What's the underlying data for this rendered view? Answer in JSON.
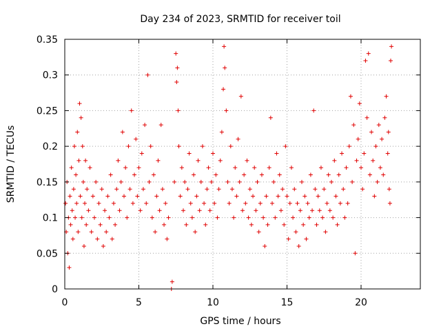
{
  "chart_data": {
    "type": "scatter",
    "title": "Day 234 of 2023, SRMTID for receiver toil",
    "xlabel": "GPS time / hours",
    "ylabel": "SRMTID / TECUs",
    "xlim": [
      0,
      24
    ],
    "ylim": [
      0,
      0.35
    ],
    "x_ticks": [
      0,
      5,
      10,
      15,
      20
    ],
    "x_tick_labels": [
      "0",
      "5",
      "10",
      "15",
      "20"
    ],
    "y_ticks": [
      0,
      0.05,
      0.1,
      0.15,
      0.2,
      0.25,
      0.3,
      0.35
    ],
    "y_tick_labels": [
      "0",
      "0.05",
      "0.1",
      "0.15",
      "0.2",
      "0.25",
      "0.3",
      "0.35"
    ],
    "grid": true,
    "marker": "+",
    "color": "#e00000",
    "series": [
      {
        "points": [
          [
            0.05,
            0.12
          ],
          [
            0.1,
            0.08
          ],
          [
            0.15,
            0.15
          ],
          [
            0.2,
            0.05
          ],
          [
            0.25,
            0.1
          ],
          [
            0.3,
            0.03
          ],
          [
            0.35,
            0.13
          ],
          [
            0.4,
            0.09
          ],
          [
            0.45,
            0.17
          ],
          [
            0.5,
            0.11
          ],
          [
            0.55,
            0.07
          ],
          [
            0.6,
            0.14
          ],
          [
            0.65,
            0.2
          ],
          [
            0.7,
            0.1
          ],
          [
            0.75,
            0.16
          ],
          [
            0.8,
            0.12
          ],
          [
            0.85,
            0.22
          ],
          [
            0.9,
            0.08
          ],
          [
            0.95,
            0.18
          ],
          [
            1.0,
            0.26
          ],
          [
            1.05,
            0.13
          ],
          [
            1.1,
            0.24
          ],
          [
            1.15,
            0.1
          ],
          [
            1.2,
            0.2
          ],
          [
            1.25,
            0.15
          ],
          [
            1.3,
            0.06
          ],
          [
            1.35,
            0.12
          ],
          [
            1.4,
            0.18
          ],
          [
            1.45,
            0.09
          ],
          [
            1.5,
            0.14
          ],
          [
            1.6,
            0.11
          ],
          [
            1.7,
            0.17
          ],
          [
            1.8,
            0.08
          ],
          [
            1.9,
            0.13
          ],
          [
            2.0,
            0.1
          ],
          [
            2.1,
            0.15
          ],
          [
            2.2,
            0.07
          ],
          [
            2.3,
            0.12
          ],
          [
            2.4,
            0.09
          ],
          [
            2.5,
            0.14
          ],
          [
            2.6,
            0.06
          ],
          [
            2.7,
            0.11
          ],
          [
            2.8,
            0.08
          ],
          [
            2.9,
            0.13
          ],
          [
            3.0,
            0.1
          ],
          [
            3.1,
            0.16
          ],
          [
            3.2,
            0.07
          ],
          [
            3.3,
            0.12
          ],
          [
            3.4,
            0.09
          ],
          [
            3.5,
            0.14
          ],
          [
            3.6,
            0.18
          ],
          [
            3.7,
            0.11
          ],
          [
            3.8,
            0.15
          ],
          [
            3.9,
            0.22
          ],
          [
            4.0,
            0.13
          ],
          [
            4.1,
            0.17
          ],
          [
            4.2,
            0.1
          ],
          [
            4.3,
            0.2
          ],
          [
            4.4,
            0.14
          ],
          [
            4.5,
            0.25
          ],
          [
            4.6,
            0.12
          ],
          [
            4.7,
            0.16
          ],
          [
            4.8,
            0.21
          ],
          [
            4.9,
            0.13
          ],
          [
            5.0,
            0.17
          ],
          [
            5.1,
            0.11
          ],
          [
            5.2,
            0.19
          ],
          [
            5.3,
            0.14
          ],
          [
            5.4,
            0.23
          ],
          [
            5.5,
            0.12
          ],
          [
            5.6,
            0.3
          ],
          [
            5.7,
            0.15
          ],
          [
            5.8,
            0.2
          ],
          [
            5.9,
            0.1
          ],
          [
            6.0,
            0.16
          ],
          [
            6.1,
            0.08
          ],
          [
            6.2,
            0.13
          ],
          [
            6.3,
            0.18
          ],
          [
            6.4,
            0.11
          ],
          [
            6.5,
            0.23
          ],
          [
            6.6,
            0.14
          ],
          [
            6.7,
            0.09
          ],
          [
            6.8,
            0.12
          ],
          [
            6.9,
            0.07
          ],
          [
            7.0,
            0.1
          ],
          [
            7.2,
            0.0
          ],
          [
            7.25,
            0.01
          ],
          [
            7.4,
            0.15
          ],
          [
            7.5,
            0.33
          ],
          [
            7.55,
            0.29
          ],
          [
            7.6,
            0.31
          ],
          [
            7.65,
            0.25
          ],
          [
            7.7,
            0.2
          ],
          [
            7.8,
            0.13
          ],
          [
            7.9,
            0.17
          ],
          [
            8.0,
            0.11
          ],
          [
            8.1,
            0.15
          ],
          [
            8.2,
            0.09
          ],
          [
            8.3,
            0.14
          ],
          [
            8.4,
            0.19
          ],
          [
            8.5,
            0.12
          ],
          [
            8.6,
            0.1
          ],
          [
            8.7,
            0.16
          ],
          [
            8.8,
            0.08
          ],
          [
            8.9,
            0.13
          ],
          [
            9.0,
            0.18
          ],
          [
            9.1,
            0.11
          ],
          [
            9.2,
            0.15
          ],
          [
            9.3,
            0.2
          ],
          [
            9.4,
            0.12
          ],
          [
            9.5,
            0.09
          ],
          [
            9.6,
            0.14
          ],
          [
            9.7,
            0.17
          ],
          [
            9.8,
            0.11
          ],
          [
            9.9,
            0.15
          ],
          [
            10.0,
            0.19
          ],
          [
            10.1,
            0.12
          ],
          [
            10.2,
            0.16
          ],
          [
            10.3,
            0.1
          ],
          [
            10.4,
            0.14
          ],
          [
            10.5,
            0.18
          ],
          [
            10.6,
            0.22
          ],
          [
            10.7,
            0.28
          ],
          [
            10.75,
            0.34
          ],
          [
            10.8,
            0.31
          ],
          [
            10.9,
            0.25
          ],
          [
            11.0,
            0.15
          ],
          [
            11.1,
            0.12
          ],
          [
            11.2,
            0.2
          ],
          [
            11.3,
            0.14
          ],
          [
            11.4,
            0.1
          ],
          [
            11.5,
            0.17
          ],
          [
            11.6,
            0.13
          ],
          [
            11.7,
            0.21
          ],
          [
            11.8,
            0.15
          ],
          [
            11.9,
            0.27
          ],
          [
            12.0,
            0.11
          ],
          [
            12.1,
            0.16
          ],
          [
            12.2,
            0.12
          ],
          [
            12.3,
            0.18
          ],
          [
            12.4,
            0.1
          ],
          [
            12.5,
            0.14
          ],
          [
            12.6,
            0.09
          ],
          [
            12.7,
            0.13
          ],
          [
            12.8,
            0.17
          ],
          [
            12.9,
            0.11
          ],
          [
            13.0,
            0.15
          ],
          [
            13.1,
            0.08
          ],
          [
            13.2,
            0.12
          ],
          [
            13.3,
            0.16
          ],
          [
            13.4,
            0.1
          ],
          [
            13.5,
            0.06
          ],
          [
            13.6,
            0.13
          ],
          [
            13.7,
            0.09
          ],
          [
            13.8,
            0.17
          ],
          [
            13.9,
            0.24
          ],
          [
            14.0,
            0.12
          ],
          [
            14.1,
            0.15
          ],
          [
            14.2,
            0.1
          ],
          [
            14.3,
            0.19
          ],
          [
            14.4,
            0.13
          ],
          [
            14.5,
            0.16
          ],
          [
            14.6,
            0.11
          ],
          [
            14.7,
            0.14
          ],
          [
            14.8,
            0.09
          ],
          [
            14.9,
            0.2
          ],
          [
            15.0,
            0.13
          ],
          [
            15.1,
            0.07
          ],
          [
            15.2,
            0.12
          ],
          [
            15.3,
            0.17
          ],
          [
            15.4,
            0.1
          ],
          [
            15.5,
            0.14
          ],
          [
            15.6,
            0.08
          ],
          [
            15.7,
            0.12
          ],
          [
            15.8,
            0.06
          ],
          [
            15.9,
            0.11
          ],
          [
            16.0,
            0.15
          ],
          [
            16.1,
            0.09
          ],
          [
            16.2,
            0.13
          ],
          [
            16.3,
            0.07
          ],
          [
            16.4,
            0.12
          ],
          [
            16.5,
            0.1
          ],
          [
            16.6,
            0.16
          ],
          [
            16.7,
            0.11
          ],
          [
            16.8,
            0.25
          ],
          [
            16.9,
            0.14
          ],
          [
            17.0,
            0.09
          ],
          [
            17.1,
            0.13
          ],
          [
            17.2,
            0.11
          ],
          [
            17.3,
            0.17
          ],
          [
            17.4,
            0.1
          ],
          [
            17.5,
            0.14
          ],
          [
            17.6,
            0.08
          ],
          [
            17.7,
            0.12
          ],
          [
            17.8,
            0.16
          ],
          [
            17.9,
            0.11
          ],
          [
            18.0,
            0.15
          ],
          [
            18.1,
            0.1
          ],
          [
            18.2,
            0.18
          ],
          [
            18.3,
            0.13
          ],
          [
            18.4,
            0.09
          ],
          [
            18.5,
            0.16
          ],
          [
            18.6,
            0.12
          ],
          [
            18.7,
            0.19
          ],
          [
            18.8,
            0.14
          ],
          [
            18.9,
            0.1
          ],
          [
            19.0,
            0.17
          ],
          [
            19.1,
            0.12
          ],
          [
            19.2,
            0.2
          ],
          [
            19.3,
            0.27
          ],
          [
            19.4,
            0.15
          ],
          [
            19.5,
            0.23
          ],
          [
            19.6,
            0.05
          ],
          [
            19.7,
            0.18
          ],
          [
            19.8,
            0.21
          ],
          [
            19.9,
            0.26
          ],
          [
            20.0,
            0.17
          ],
          [
            20.1,
            0.14
          ],
          [
            20.2,
            0.19
          ],
          [
            20.3,
            0.32
          ],
          [
            20.4,
            0.24
          ],
          [
            20.5,
            0.33
          ],
          [
            20.6,
            0.16
          ],
          [
            20.7,
            0.22
          ],
          [
            20.8,
            0.18
          ],
          [
            20.9,
            0.13
          ],
          [
            21.0,
            0.2
          ],
          [
            21.1,
            0.15
          ],
          [
            21.2,
            0.23
          ],
          [
            21.3,
            0.17
          ],
          [
            21.4,
            0.21
          ],
          [
            21.5,
            0.16
          ],
          [
            21.6,
            0.24
          ],
          [
            21.7,
            0.27
          ],
          [
            21.8,
            0.19
          ],
          [
            21.9,
            0.14
          ],
          [
            22.0,
            0.32
          ],
          [
            22.05,
            0.34
          ],
          [
            21.85,
            0.22
          ],
          [
            21.95,
            0.12
          ]
        ]
      }
    ]
  }
}
